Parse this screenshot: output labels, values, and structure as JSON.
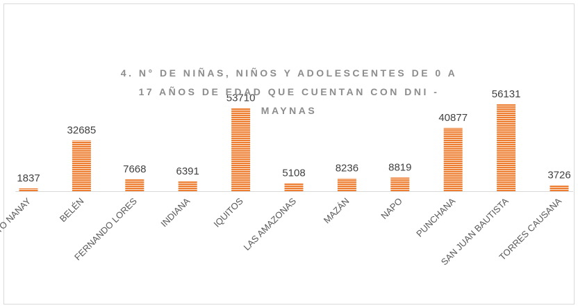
{
  "chart_data": {
    "type": "bar",
    "title": "4. N° DE NIÑAS, NIÑOS Y ADOLESCENTES DE 0 A 17 AÑOS DE EDAD QUE CUENTAN CON DNI - MAYNAS",
    "categories": [
      "ALTO NANAY",
      "BELÉN",
      "FERNANDO LORES",
      "INDIANA",
      "IQUITOS",
      "LAS AMAZONAS",
      "MAZÁN",
      "NAPO",
      "PUNCHANA",
      "SAN JUAN BAUTISTA",
      "TORRES CAUSANA"
    ],
    "values": [
      1837,
      32685,
      7668,
      6391,
      53710,
      5108,
      8236,
      8819,
      40877,
      56131,
      3726
    ],
    "color": "#ed7d31"
  }
}
